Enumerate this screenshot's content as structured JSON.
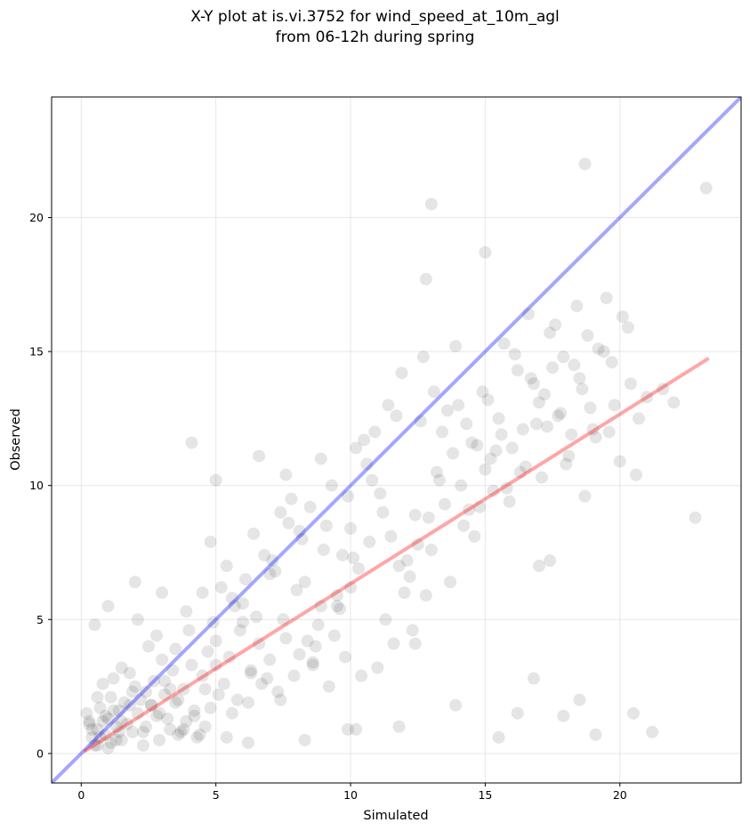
{
  "chart_data": {
    "type": "scatter",
    "title_line1": "X-Y plot at is.vi.3752 for wind_speed_at_10m_agl",
    "title_line2": "from 06-12h during spring",
    "xlabel": "Simulated",
    "ylabel": "Observed",
    "xlim": [
      -1.1,
      24.5
    ],
    "ylim": [
      -1.1,
      24.5
    ],
    "xticks": [
      0,
      5,
      10,
      15,
      20
    ],
    "yticks": [
      0,
      5,
      10,
      15,
      20
    ],
    "grid": true,
    "point_color": "#000000",
    "point_alpha": 0.1,
    "one_to_one_line": {
      "color": "#0000ff",
      "alpha": 0.35,
      "x": [
        -1.1,
        24.5
      ],
      "y": [
        -1.1,
        24.5
      ]
    },
    "fit_line": {
      "color": "#ff0000",
      "alpha": 0.35,
      "x": [
        0.1,
        23.3
      ],
      "y": [
        0.07,
        14.75
      ]
    },
    "points": {
      "x": [
        0.9,
        1.2,
        0.6,
        1.5,
        1.8,
        0.4,
        1.1,
        2.1,
        0.7,
        1.4,
        0.3,
        1.9,
        2.4,
        1.0,
        0.8,
        1.3,
        1.6,
        0.5,
        2.2,
        1.7,
        0.2,
        2.6,
        1.2,
        0.9,
        1.4,
        2.0,
        0.6,
        1.1,
        1.8,
        2.8,
        0.4,
        1.5,
        3.1,
        2.3,
        0.8,
        1.0,
        3.5,
        2.7,
        1.3,
        0.7,
        3.0,
        3.8,
        4.2,
        2.5,
        3.3,
        4.5,
        3.9,
        2.9,
        4.1,
        3.6,
        4.8,
        5.0,
        3.2,
        4.4,
        2.4,
        4.7,
        5.3,
        3.7,
        4.0,
        5.6,
        2.1,
        3.4,
        4.6,
        5.1,
        2.8,
        3.9,
        4.3,
        5.5,
        2.6,
        3.1,
        4.9,
        5.8,
        6.0,
        3.5,
        4.2,
        6.3,
        5.2,
        4.6,
        6.6,
        3.8,
        5.7,
        6.9,
        4.5,
        5.9,
        6.2,
        7.0,
        5.4,
        6.5,
        7.3,
        6.1,
        5.0,
        7.6,
        6.8,
        7.9,
        5.6,
        7.2,
        8.1,
        6.4,
        7.5,
        8.4,
        4.8,
        6.7,
        8.0,
        7.7,
        8.6,
        6.0,
        7.1,
        8.9,
        9.2,
        7.4,
        8.3,
        6.3,
        9.0,
        8.7,
        7.8,
        9.5,
        8.2,
        9.8,
        7.0,
        9.3,
        8.8,
        10.1,
        9.6,
        8.5,
        10.4,
        9.1,
        7.6,
        10.0,
        9.4,
        10.7,
        8.9,
        11.0,
        9.9,
        10.3,
        11.3,
        8.1,
        10.6,
        11.6,
        9.7,
        10.9,
        11.2,
        12.0,
        10.2,
        11.5,
        12.3,
        10.8,
        11.8,
        12.6,
        9.5,
        11.1,
        12.9,
        10.5,
        12.2,
        13.2,
        11.4,
        12.5,
        13.5,
        11.7,
        12.8,
        13.8,
        10.0,
        13.1,
        14.1,
        12.1,
        13.4,
        14.4,
        11.9,
        13.7,
        14.7,
        12.4,
        14.0,
        15.0,
        13.0,
        14.3,
        15.3,
        12.7,
        14.6,
        15.6,
        13.3,
        14.9,
        15.9,
        13.6,
        15.2,
        16.2,
        14.2,
        15.5,
        16.5,
        13.9,
        15.8,
        16.8,
        14.5,
        16.1,
        17.1,
        15.1,
        16.4,
        17.4,
        14.8,
        16.7,
        17.7,
        15.4,
        17.0,
        18.0,
        15.7,
        17.3,
        18.3,
        16.0,
        17.6,
        18.6,
        16.3,
        17.9,
        18.9,
        16.6,
        18.2,
        19.2,
        17.2,
        18.5,
        19.5,
        16.9,
        18.8,
        19.8,
        17.5,
        19.1,
        20.1,
        17.8,
        19.4,
        20.4,
        18.1,
        19.7,
        20.7,
        18.4,
        20.0,
        21.0,
        19.0,
        20.3,
        21.6,
        18.7,
        19.6,
        20.6,
        22.0,
        17.0,
        4.1,
        6.6,
        5.0,
        3.0,
        2.0,
        1.0,
        0.5,
        12.8,
        13.0,
        15.0,
        18.7,
        23.2,
        22.8,
        16.2,
        16.8,
        17.9,
        18.5,
        19.1,
        20.5,
        21.2,
        1.5,
        2.3,
        3.6,
        6.2,
        8.3,
        9.9,
        11.8,
        13.9,
        15.5,
        17.4,
        0.3,
        0.6,
        1.9,
        2.9,
        3.3,
        5.4,
        7.4,
        8.6,
        10.2,
        12.4
      ],
      "y": [
        1.4,
        1.6,
        0.9,
        1.2,
        1.8,
        0.6,
        2.1,
        1.5,
        1.7,
        0.8,
        1.1,
        2.3,
        1.0,
        1.3,
        2.6,
        0.5,
        1.9,
        0.3,
        2.0,
        1.1,
        1.5,
        1.8,
        2.8,
        0.7,
        1.6,
        2.5,
        2.1,
        0.4,
        3.0,
        1.4,
        0.9,
        3.2,
        2.2,
        0.8,
        1.2,
        0.2,
        1.9,
        2.7,
        1.0,
        0.6,
        3.5,
        2.4,
        1.6,
        4.0,
        0.9,
        2.9,
        1.2,
        0.5,
        3.3,
        2.0,
        1.7,
        4.2,
        1.3,
        0.7,
        2.3,
        3.8,
        2.6,
        0.8,
        4.6,
        1.5,
        5.0,
        3.1,
        1.0,
        2.2,
        4.4,
        5.3,
        0.6,
        3.6,
        1.8,
        2.7,
        4.9,
        2.0,
        5.6,
        3.9,
        1.4,
        3.0,
        6.2,
        2.4,
        4.1,
        0.9,
        5.5,
        2.8,
        6.0,
        4.6,
        1.9,
        3.5,
        7.0,
        5.1,
        2.3,
        6.5,
        3.3,
        4.3,
        7.4,
        2.9,
        5.8,
        6.8,
        3.7,
        8.2,
        5.0,
        4.2,
        7.9,
        2.6,
        6.1,
        8.6,
        3.4,
        4.9,
        7.2,
        5.5,
        2.5,
        9.0,
        6.4,
        3.1,
        7.6,
        4.0,
        9.5,
        5.9,
        8.0,
        3.6,
        6.7,
        10.0,
        4.8,
        7.3,
        5.4,
        9.2,
        2.9,
        8.5,
        10.4,
        6.2,
        4.4,
        7.9,
        11.0,
        3.2,
        9.6,
        6.9,
        5.0,
        8.3,
        10.8,
        4.1,
        7.4,
        12.0,
        9.0,
        6.0,
        11.4,
        8.1,
        4.6,
        10.2,
        7.0,
        12.4,
        5.5,
        9.7,
        8.8,
        11.7,
        6.6,
        10.5,
        13.0,
        7.8,
        9.3,
        12.6,
        5.9,
        11.2,
        8.4,
        13.5,
        10.0,
        7.2,
        12.0,
        9.1,
        14.2,
        6.4,
        11.5,
        8.9,
        13.0,
        10.6,
        7.6,
        12.3,
        9.8,
        14.8,
        8.1,
        11.9,
        10.2,
        13.5,
        9.4,
        12.8,
        11.0,
        14.3,
        8.5,
        12.5,
        10.7,
        15.2,
        9.9,
        13.8,
        11.6,
        14.9,
        10.3,
        13.2,
        12.1,
        15.7,
        9.2,
        14.0,
        12.6,
        11.3,
        13.1,
        10.8,
        15.3,
        12.2,
        14.5,
        11.4,
        16.0,
        13.6,
        10.5,
        14.8,
        12.9,
        16.4,
        11.9,
        15.1,
        13.4,
        14.0,
        17.0,
        12.3,
        15.6,
        13.0,
        14.4,
        11.8,
        16.3,
        12.7,
        15.0,
        13.8,
        11.1,
        14.6,
        12.5,
        16.7,
        10.9,
        13.3,
        12.1,
        15.9,
        13.6,
        9.6,
        12.0,
        10.4,
        13.1,
        7.0,
        11.6,
        11.1,
        10.2,
        6.0,
        6.4,
        5.5,
        4.8,
        17.7,
        20.5,
        18.7,
        22.0,
        21.1,
        8.8,
        1.5,
        2.8,
        1.4,
        2.0,
        0.7,
        1.5,
        0.8,
        0.5,
        0.3,
        0.7,
        0.4,
        0.5,
        0.9,
        1.0,
        1.8,
        0.6,
        7.2,
        1.2,
        0.3,
        0.8,
        1.5,
        2.4,
        0.6,
        2.0,
        3.3,
        0.9,
        4.1
      ]
    }
  }
}
